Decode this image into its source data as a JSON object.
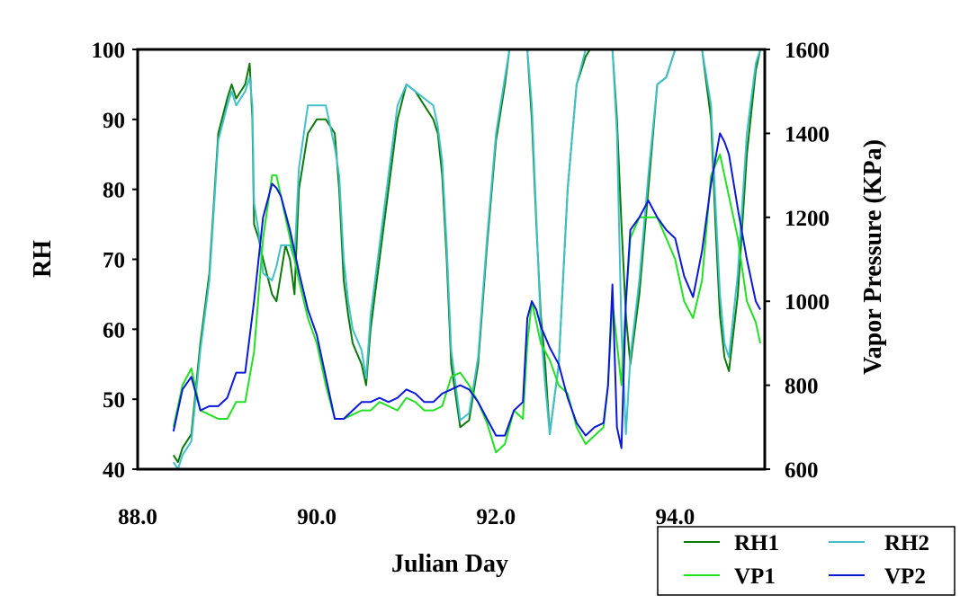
{
  "chart_data": {
    "type": "line",
    "title": "",
    "xlabel": "Julian Day",
    "ylabel": "RH",
    "y2label": "Vapor Pressure (KPa)",
    "xlim": [
      88.0,
      95.0
    ],
    "ylim": [
      40,
      100
    ],
    "y2lim": [
      600,
      1600
    ],
    "xticks": [
      "88.0",
      "90.0",
      "92.0",
      "94.0"
    ],
    "xtick_values": [
      88,
      90,
      92,
      94
    ],
    "yticks": [
      "40",
      "50",
      "60",
      "70",
      "80",
      "90",
      "100"
    ],
    "ytick_values": [
      40,
      50,
      60,
      70,
      80,
      90,
      100
    ],
    "y2ticks": [
      "600",
      "800",
      "1000",
      "1200",
      "1400",
      "1600"
    ],
    "y2tick_values": [
      600,
      800,
      1000,
      1200,
      1400,
      1600
    ],
    "grid": false,
    "legend_position": "bottom-right",
    "series": [
      {
        "name": "RH1",
        "axis": "left",
        "color": "#0a7a0a",
        "x": [
          88.4,
          88.45,
          88.5,
          88.6,
          88.7,
          88.8,
          88.9,
          89.0,
          89.05,
          89.1,
          89.2,
          89.25,
          89.28,
          89.3,
          89.35,
          89.4,
          89.5,
          89.55,
          89.6,
          89.65,
          89.7,
          89.75,
          89.8,
          89.9,
          90.0,
          90.1,
          90.2,
          90.25,
          90.3,
          90.35,
          90.4,
          90.5,
          90.55,
          90.6,
          90.7,
          90.8,
          90.9,
          91.0,
          91.1,
          91.2,
          91.3,
          91.35,
          91.4,
          91.45,
          91.5,
          91.6,
          91.7,
          91.8,
          91.9,
          92.0,
          92.1,
          92.15,
          92.3,
          92.35,
          92.4,
          92.45,
          92.5,
          92.55,
          92.6,
          92.7,
          92.8,
          92.9,
          93.0,
          93.05,
          93.3,
          93.35,
          93.4,
          93.45,
          93.5,
          93.6,
          93.7,
          93.8,
          93.9,
          94.0,
          94.1,
          94.3,
          94.4,
          94.45,
          94.5,
          94.55,
          94.6,
          94.7,
          94.8,
          94.9,
          94.95
        ],
        "y": [
          42,
          41,
          43,
          45,
          58,
          68,
          88,
          93,
          95,
          93,
          95,
          98,
          90,
          75,
          73,
          70,
          65,
          64,
          68,
          72,
          70,
          65,
          80,
          88,
          90,
          90,
          88,
          80,
          67,
          62,
          58,
          55,
          52,
          60,
          70,
          80,
          90,
          95,
          94,
          92,
          90,
          88,
          82,
          70,
          55,
          46,
          47,
          55,
          72,
          87,
          95,
          100,
          100,
          100,
          90,
          75,
          62,
          55,
          45,
          55,
          80,
          95,
          99,
          100,
          100,
          90,
          75,
          62,
          55,
          65,
          80,
          95,
          96,
          100,
          100,
          100,
          90,
          75,
          62,
          56,
          54,
          65,
          85,
          97,
          100
        ]
      },
      {
        "name": "RH2",
        "axis": "left",
        "color": "#40c0c8",
        "x": [
          88.4,
          88.45,
          88.5,
          88.6,
          88.7,
          88.8,
          88.9,
          89.0,
          89.05,
          89.1,
          89.2,
          89.25,
          89.28,
          89.3,
          89.35,
          89.4,
          89.5,
          89.55,
          89.6,
          89.65,
          89.7,
          89.75,
          89.8,
          89.9,
          90.0,
          90.1,
          90.2,
          90.25,
          90.3,
          90.35,
          90.4,
          90.5,
          90.55,
          90.6,
          90.7,
          90.8,
          90.9,
          91.0,
          91.1,
          91.2,
          91.3,
          91.35,
          91.4,
          91.45,
          91.5,
          91.6,
          91.7,
          91.8,
          91.9,
          92.0,
          92.1,
          92.15,
          92.3,
          92.35,
          92.4,
          92.45,
          92.5,
          92.55,
          92.6,
          92.7,
          92.8,
          92.9,
          93.0,
          93.05,
          93.3,
          93.35,
          93.4,
          93.45,
          93.5,
          93.6,
          93.7,
          93.8,
          93.9,
          94.0,
          94.1,
          94.3,
          94.4,
          94.45,
          94.5,
          94.55,
          94.6,
          94.7,
          94.8,
          94.9,
          94.95
        ],
        "y": [
          41,
          40,
          42,
          44,
          57,
          67,
          87,
          92,
          94,
          92,
          94,
          96,
          92,
          78,
          74,
          68,
          67,
          69,
          72,
          72,
          72,
          70,
          83,
          92,
          92,
          92,
          86,
          82,
          70,
          64,
          60,
          57,
          53,
          62,
          72,
          82,
          92,
          95,
          94,
          93,
          92,
          89,
          84,
          72,
          57,
          47,
          48,
          56,
          73,
          88,
          96,
          100,
          100,
          100,
          92,
          76,
          60,
          52,
          45,
          55,
          80,
          95,
          100,
          100,
          100,
          88,
          60,
          45,
          56,
          67,
          82,
          95,
          96,
          100,
          100,
          100,
          92,
          78,
          65,
          58,
          56,
          68,
          88,
          98,
          100
        ]
      },
      {
        "name": "VP1",
        "axis": "right",
        "color": "#22e022",
        "x": [
          88.4,
          88.5,
          88.6,
          88.7,
          88.8,
          88.9,
          89.0,
          89.1,
          89.2,
          89.3,
          89.4,
          89.5,
          89.55,
          89.6,
          89.7,
          89.8,
          89.9,
          90.0,
          90.1,
          90.2,
          90.3,
          90.4,
          90.5,
          90.6,
          90.7,
          90.8,
          90.9,
          91.0,
          91.1,
          91.2,
          91.3,
          91.4,
          91.5,
          91.6,
          91.7,
          91.8,
          91.9,
          92.0,
          92.1,
          92.2,
          92.3,
          92.35,
          92.4,
          92.45,
          92.5,
          92.6,
          92.7,
          92.8,
          92.9,
          93.0,
          93.1,
          93.2,
          93.25,
          93.3,
          93.35,
          93.4,
          93.45,
          93.5,
          93.6,
          93.7,
          93.8,
          93.9,
          94.0,
          94.1,
          94.2,
          94.3,
          94.4,
          94.5,
          94.55,
          94.6,
          94.7,
          94.8,
          94.9,
          94.95
        ],
        "y": [
          700,
          800,
          840,
          740,
          730,
          720,
          720,
          760,
          760,
          880,
          1150,
          1300,
          1300,
          1250,
          1150,
          1050,
          960,
          900,
          800,
          720,
          720,
          730,
          740,
          740,
          760,
          750,
          740,
          770,
          760,
          740,
          740,
          750,
          820,
          830,
          800,
          760,
          710,
          640,
          660,
          740,
          720,
          900,
          1000,
          950,
          900,
          860,
          800,
          780,
          700,
          660,
          680,
          700,
          800,
          1000,
          900,
          800,
          1000,
          1150,
          1200,
          1200,
          1200,
          1150,
          1100,
          1000,
          960,
          1050,
          1300,
          1350,
          1300,
          1250,
          1150,
          1000,
          950,
          900
        ]
      },
      {
        "name": "VP2",
        "axis": "right",
        "color": "#0b18d8",
        "x": [
          88.4,
          88.5,
          88.6,
          88.7,
          88.8,
          88.9,
          89.0,
          89.1,
          89.2,
          89.3,
          89.4,
          89.5,
          89.55,
          89.6,
          89.7,
          89.8,
          89.9,
          90.0,
          90.1,
          90.2,
          90.3,
          90.4,
          90.5,
          90.6,
          90.7,
          90.8,
          90.9,
          91.0,
          91.1,
          91.2,
          91.3,
          91.4,
          91.5,
          91.6,
          91.7,
          91.8,
          91.9,
          92.0,
          92.1,
          92.2,
          92.3,
          92.35,
          92.4,
          92.45,
          92.5,
          92.6,
          92.7,
          92.8,
          92.9,
          93.0,
          93.1,
          93.2,
          93.25,
          93.3,
          93.35,
          93.4,
          93.45,
          93.5,
          93.6,
          93.7,
          93.8,
          93.9,
          94.0,
          94.1,
          94.2,
          94.3,
          94.4,
          94.5,
          94.55,
          94.6,
          94.7,
          94.8,
          94.9,
          94.95
        ],
        "y": [
          690,
          790,
          820,
          740,
          750,
          750,
          770,
          830,
          830,
          1000,
          1200,
          1280,
          1270,
          1250,
          1170,
          1070,
          980,
          920,
          820,
          720,
          720,
          740,
          760,
          760,
          770,
          760,
          770,
          790,
          780,
          760,
          760,
          780,
          790,
          800,
          790,
          760,
          720,
          680,
          680,
          740,
          760,
          960,
          1000,
          980,
          940,
          890,
          850,
          770,
          710,
          680,
          700,
          710,
          800,
          1040,
          700,
          650,
          1000,
          1170,
          1200,
          1240,
          1200,
          1170,
          1150,
          1060,
          1010,
          1120,
          1280,
          1400,
          1380,
          1350,
          1220,
          1100,
          1000,
          980
        ]
      }
    ]
  }
}
